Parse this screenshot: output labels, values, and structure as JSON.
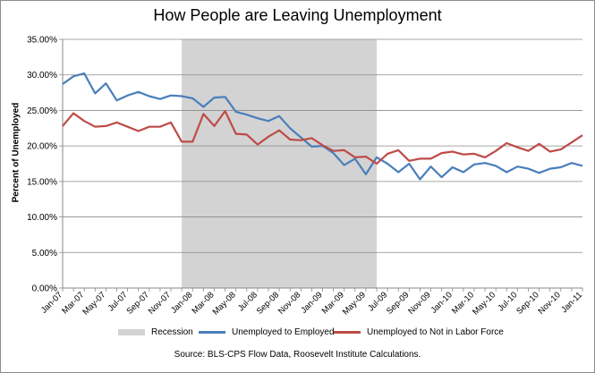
{
  "chart_data": {
    "type": "line",
    "title": "How People are Leaving Unemployment",
    "ylabel": "Percent of Unemployed",
    "xlabel": "",
    "ylim": [
      0,
      35
    ],
    "yticks": [
      "0.00%",
      "5.00%",
      "10.00%",
      "15.00%",
      "20.00%",
      "25.00%",
      "30.00%",
      "35.00%"
    ],
    "grid": "horizontal",
    "x": [
      "Jan-07",
      "Feb-07",
      "Mar-07",
      "Apr-07",
      "May-07",
      "Jun-07",
      "Jul-07",
      "Aug-07",
      "Sep-07",
      "Oct-07",
      "Nov-07",
      "Dec-07",
      "Jan-08",
      "Feb-08",
      "Mar-08",
      "Apr-08",
      "May-08",
      "Jun-08",
      "Jul-08",
      "Aug-08",
      "Sep-08",
      "Oct-08",
      "Nov-08",
      "Dec-08",
      "Jan-09",
      "Feb-09",
      "Mar-09",
      "Apr-09",
      "May-09",
      "Jun-09",
      "Jul-09",
      "Aug-09",
      "Sep-09",
      "Oct-09",
      "Nov-09",
      "Dec-09",
      "Jan-10",
      "Feb-10",
      "Mar-10",
      "Apr-10",
      "May-10",
      "Jun-10",
      "Jul-10",
      "Aug-10",
      "Sep-10",
      "Oct-10",
      "Nov-10",
      "Dec-10",
      "Jan-11"
    ],
    "xtick_labels": [
      "Jan-07",
      "Mar-07",
      "May-07",
      "Jul-07",
      "Sep-07",
      "Nov-07",
      "Jan-08",
      "Mar-08",
      "May-08",
      "Jul-08",
      "Sep-08",
      "Nov-08",
      "Jan-09",
      "Mar-09",
      "May-09",
      "Jul-09",
      "Sep-09",
      "Nov-09",
      "Jan-10",
      "Mar-10",
      "May-10",
      "Jul-10",
      "Sep-10",
      "Nov-10",
      "Jan-11"
    ],
    "recession": {
      "label": "Recession",
      "start": "Dec-07",
      "end": "Jun-09",
      "color": "#d3d3d3"
    },
    "series": [
      {
        "name": "Unemployed to Employed",
        "color": "#4a7ebb",
        "values": [
          28.7,
          29.8,
          30.2,
          27.4,
          28.8,
          26.4,
          27.1,
          27.6,
          27.0,
          26.6,
          27.1,
          27.0,
          26.7,
          25.5,
          26.8,
          26.9,
          24.8,
          24.4,
          23.9,
          23.5,
          24.2,
          22.5,
          21.2,
          19.9,
          20.0,
          19.0,
          17.3,
          18.2,
          16.0,
          18.4,
          17.5,
          16.3,
          17.5,
          15.3,
          17.1,
          15.6,
          17.0,
          16.3,
          17.4,
          17.6,
          17.2,
          16.3,
          17.1,
          16.8,
          16.2,
          16.8,
          17.0,
          17.6,
          17.2
        ]
      },
      {
        "name": "Unemployed to Not in Labor Force",
        "color": "#be4b48",
        "values": [
          22.8,
          24.6,
          23.5,
          22.7,
          22.8,
          23.3,
          22.7,
          22.1,
          22.7,
          22.7,
          23.3,
          20.6,
          20.6,
          24.5,
          22.8,
          24.9,
          21.7,
          21.6,
          20.2,
          21.3,
          22.2,
          20.9,
          20.8,
          21.1,
          20.1,
          19.3,
          19.4,
          18.4,
          18.5,
          17.5,
          18.9,
          19.4,
          17.9,
          18.2,
          18.2,
          19.0,
          19.2,
          18.8,
          18.9,
          18.4,
          19.3,
          20.4,
          19.8,
          19.3,
          20.3,
          19.2,
          19.5,
          20.5,
          21.5
        ]
      }
    ],
    "legend": "bottom",
    "source": "Source:    BLS-CPS Flow Data, Roosevelt Institute Calculations."
  }
}
